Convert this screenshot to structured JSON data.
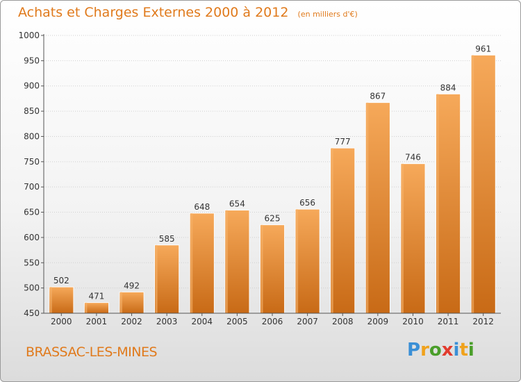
{
  "title": "Achats et Charges Externes 2000 à 2012",
  "subtitle": "(en milliers d'€)",
  "footer": {
    "place": "BRASSAC-LES-MINES",
    "logo": {
      "letters": [
        "P",
        "r",
        "o",
        "x",
        "i",
        "t",
        "i"
      ],
      "colors": [
        "#3a8fd6",
        "#f0a21c",
        "#4a9e2a",
        "#e23b2e",
        "#3a8fd6",
        "#f0a21c",
        "#4a9e2a"
      ]
    }
  },
  "chart_data": {
    "type": "bar",
    "categories": [
      "2000",
      "2001",
      "2002",
      "2003",
      "2004",
      "2005",
      "2006",
      "2007",
      "2008",
      "2009",
      "2010",
      "2011",
      "2012"
    ],
    "values": [
      502,
      471,
      492,
      585,
      648,
      654,
      625,
      656,
      777,
      867,
      746,
      884,
      961
    ],
    "data_labels": [
      "502",
      "471",
      "492",
      "585",
      "648",
      "654",
      "625",
      "656",
      "777",
      "867",
      "746",
      "884",
      "961"
    ],
    "ylim": [
      450,
      1000
    ],
    "yticks": [
      "450",
      "500",
      "550",
      "600",
      "650",
      "700",
      "750",
      "800",
      "850",
      "900",
      "950",
      "1000"
    ],
    "grid": true,
    "bar_color": "#e98a2a",
    "bar_color_light": "#f6a95a",
    "bar_color_dark": "#c86a16"
  }
}
